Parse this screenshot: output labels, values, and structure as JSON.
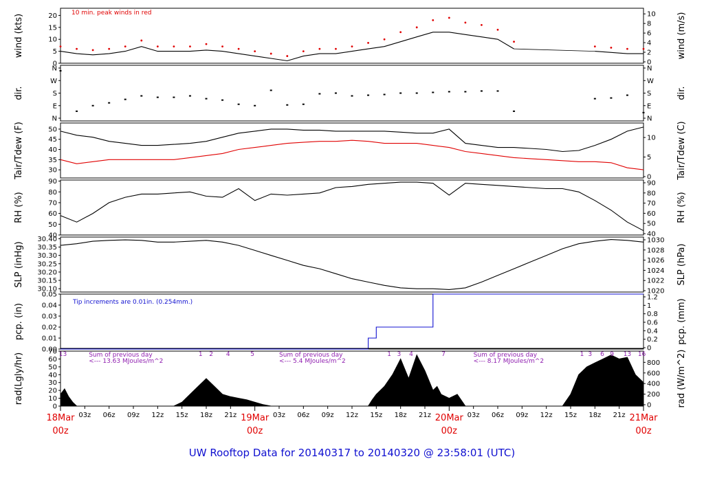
{
  "title": "UW Rooftop Data for 20140317  to  20140320 @ 23:58:01  (UTC)",
  "chart_data": [
    {
      "type": "line",
      "name": "wind",
      "ylabel": "wind (kts)",
      "ylabel_right": "wind (m/s)",
      "ylim": [
        0,
        23
      ],
      "yticks": [
        0,
        5,
        10,
        15,
        20
      ],
      "yticks_right": [
        "0",
        "2",
        "4",
        "6",
        "8",
        "10"
      ],
      "annotation": "10 min. peak winds in red",
      "x_hours": [
        0,
        2,
        4,
        6,
        8,
        10,
        12,
        14,
        16,
        18,
        20,
        22,
        24,
        26,
        28,
        30,
        32,
        34,
        36,
        38,
        40,
        42,
        44,
        46,
        48,
        50,
        52,
        54,
        56,
        58,
        60,
        62,
        64,
        66,
        68,
        70,
        72
      ],
      "series": [
        {
          "values": [
            5,
            4,
            3.5,
            4,
            5,
            7,
            5,
            5,
            5,
            5.5,
            5,
            4,
            3,
            2,
            1,
            3,
            4,
            4,
            5,
            6,
            7,
            9,
            11,
            13,
            13,
            12,
            11,
            10,
            6,
            null,
            null,
            null,
            null,
            5,
            4.5,
            4,
            4
          ]
        },
        {
          "values": [
            7,
            6,
            5.5,
            6,
            7,
            9.5,
            7,
            7,
            7,
            8,
            7,
            6,
            5,
            4,
            3,
            5,
            6,
            6,
            7,
            8.5,
            10,
            13,
            15,
            18,
            19,
            17,
            16,
            14,
            9,
            null,
            null,
            null,
            null,
            7,
            6.5,
            6,
            6
          ]
        }
      ]
    },
    {
      "type": "scatter",
      "name": "dir",
      "ylabel": "dir.",
      "ylabel_right": "dir.",
      "yticks": [
        "N",
        "E",
        "S",
        "W",
        "N"
      ],
      "x_hours": [
        0,
        2,
        4,
        6,
        8,
        10,
        12,
        14,
        16,
        18,
        20,
        22,
        24,
        26,
        28,
        30,
        32,
        34,
        36,
        38,
        40,
        42,
        44,
        46,
        48,
        50,
        52,
        54,
        56,
        58,
        60,
        62,
        64,
        66,
        68,
        70,
        72
      ],
      "values": [
        340,
        50,
        90,
        110,
        135,
        160,
        150,
        150,
        160,
        140,
        130,
        100,
        90,
        200,
        95,
        100,
        175,
        180,
        160,
        165,
        170,
        180,
        180,
        185,
        190,
        190,
        195,
        195,
        50,
        null,
        null,
        null,
        null,
        140,
        145,
        165,
        40
      ]
    },
    {
      "type": "line",
      "name": "temp",
      "ylabel": "Tair/Tdew (F)",
      "ylabel_right": "Tair/Tdew (C)",
      "ylim": [
        26,
        53
      ],
      "yticks": [
        30,
        35,
        40,
        45,
        50
      ],
      "yticks_right": [
        "0",
        "5",
        "10"
      ],
      "x_hours": [
        0,
        2,
        4,
        6,
        8,
        10,
        12,
        14,
        16,
        18,
        20,
        22,
        24,
        26,
        28,
        30,
        32,
        34,
        36,
        38,
        40,
        42,
        44,
        46,
        48,
        50,
        52,
        54,
        56,
        58,
        60,
        62,
        64,
        66,
        68,
        70,
        72
      ],
      "series": [
        {
          "name": "Tair",
          "values": [
            49,
            47,
            46,
            44,
            43,
            42,
            42,
            42.5,
            43,
            44,
            46,
            48,
            49,
            50,
            50,
            49.5,
            49.5,
            49,
            49,
            49,
            49,
            48.5,
            48,
            48,
            50,
            43,
            42,
            41,
            41,
            40.5,
            40,
            39,
            39.5,
            42,
            45,
            49,
            51
          ]
        },
        {
          "name": "Tdew",
          "values": [
            35,
            33,
            34,
            35,
            35,
            35,
            35,
            35,
            36,
            37,
            38,
            40,
            41,
            42,
            43,
            43.5,
            44,
            44,
            44.5,
            44,
            43,
            43,
            43,
            42,
            41,
            39,
            38,
            37,
            36,
            35.5,
            35,
            34.5,
            34,
            34,
            33.5,
            31,
            30
          ]
        }
      ]
    },
    {
      "type": "line",
      "name": "rh",
      "ylabel": "RH (%)",
      "ylabel_right": "RH (%)",
      "ylim": [
        40,
        91
      ],
      "yticks": [
        40,
        50,
        60,
        70,
        80,
        90
      ],
      "yticks_right": [
        "40",
        "50",
        "60",
        "70",
        "80",
        "90"
      ],
      "x_hours": [
        0,
        2,
        4,
        6,
        8,
        10,
        12,
        14,
        16,
        18,
        20,
        22,
        24,
        26,
        28,
        30,
        32,
        34,
        36,
        38,
        40,
        42,
        44,
        46,
        48,
        50,
        52,
        54,
        56,
        58,
        60,
        62,
        64,
        66,
        68,
        70,
        72
      ],
      "series": [
        {
          "values": [
            58,
            52,
            60,
            70,
            75,
            78,
            78,
            79,
            80,
            76,
            75,
            83,
            72,
            78,
            77,
            78,
            79,
            84,
            85,
            87,
            88,
            89,
            89,
            88,
            77,
            88,
            87,
            86,
            85,
            84,
            83,
            83,
            80,
            72,
            63,
            52,
            44
          ]
        }
      ]
    },
    {
      "type": "line",
      "name": "slp",
      "ylabel": "SLP (inHg)",
      "ylabel_right": "SLP (hPa)",
      "ylim": [
        30.08,
        30.41
      ],
      "yticks": [
        "30.10",
        "30.15",
        "30.20",
        "30.25",
        "30.30",
        "30.35",
        "30.40"
      ],
      "yticks_right": [
        "1020",
        "1022",
        "1024",
        "1026",
        "1028",
        "1030"
      ],
      "x_hours": [
        0,
        2,
        4,
        6,
        8,
        10,
        12,
        14,
        16,
        18,
        20,
        22,
        24,
        26,
        28,
        30,
        32,
        34,
        36,
        38,
        40,
        42,
        44,
        46,
        48,
        50,
        52,
        54,
        56,
        58,
        60,
        62,
        64,
        66,
        68,
        70,
        72
      ],
      "series": [
        {
          "values": [
            30.36,
            30.37,
            30.385,
            30.39,
            30.393,
            30.39,
            30.38,
            30.38,
            30.385,
            30.39,
            30.38,
            30.36,
            30.33,
            30.3,
            30.27,
            30.24,
            30.22,
            30.19,
            30.16,
            30.14,
            30.12,
            30.105,
            30.1,
            30.1,
            30.095,
            30.105,
            30.14,
            30.18,
            30.22,
            30.26,
            30.3,
            30.34,
            30.37,
            30.385,
            30.395,
            30.39,
            30.38
          ]
        }
      ]
    },
    {
      "type": "line",
      "name": "pcp",
      "ylabel": "pcp. (in)",
      "ylabel_right": "pcp. (mm)",
      "ylim": [
        0,
        0.05
      ],
      "yticks": [
        "0.00",
        "0.01",
        "0.02",
        "0.03",
        "0.04",
        "0.05"
      ],
      "yticks_right": [
        "0",
        "0.2",
        "0.4",
        "0.6",
        "0.8",
        "1",
        "1.2"
      ],
      "annotation": "Tip increments are 0.01in. (0.254mm.)",
      "steps": [
        [
          0,
          0
        ],
        [
          38,
          0
        ],
        [
          38,
          0.01
        ],
        [
          39,
          0.01
        ],
        [
          39,
          0.02
        ],
        [
          46,
          0.02
        ],
        [
          46,
          0.05
        ],
        [
          72,
          0.05
        ]
      ]
    },
    {
      "type": "area",
      "name": "rad",
      "ylabel": "rad(Lgly/hr)",
      "ylabel_right": "rad (W/m^2)",
      "ylim": [
        0,
        70
      ],
      "yticks": [
        0,
        10,
        20,
        30,
        40,
        50,
        60,
        70
      ],
      "yticks_right": [
        "0",
        "200",
        "400",
        "600",
        "800"
      ],
      "x_hours": [
        0,
        0.5,
        1,
        1.5,
        2,
        14,
        15,
        16,
        17,
        18,
        19,
        20,
        21,
        22,
        23,
        24,
        25,
        26,
        38,
        38.5,
        39,
        40,
        41,
        42,
        43,
        44,
        45,
        46,
        46.5,
        47,
        48,
        49,
        50,
        62,
        63,
        64,
        65,
        66,
        67,
        68,
        69,
        70,
        71,
        72
      ],
      "values": [
        15,
        22,
        12,
        5,
        0,
        0,
        5,
        15,
        25,
        35,
        25,
        15,
        12,
        10,
        8,
        5,
        2,
        0,
        0,
        8,
        15,
        25,
        40,
        60,
        35,
        65,
        45,
        20,
        25,
        15,
        10,
        15,
        0,
        0,
        15,
        40,
        50,
        55,
        60,
        65,
        60,
        62,
        40,
        30
      ],
      "annotations": [
        {
          "text": "Sum of previous day",
          "x_hours": 3.5,
          "line": 1
        },
        {
          "text": "<--- 13.63 MJoules/m^2",
          "x_hours": 3.5,
          "line": 2
        },
        {
          "text": "Sum of previous day",
          "x_hours": 27,
          "line": 1
        },
        {
          "text": "<--- 5.4 MJoules/m^2",
          "x_hours": 27,
          "line": 2
        },
        {
          "text": "Sum of previous day",
          "x_hours": 51,
          "line": 1
        },
        {
          "text": "<--- 8.17 MJoules/m^2",
          "x_hours": 51,
          "line": 2
        }
      ],
      "hour_markers": [
        {
          "text": "13",
          "x_hours": 0.3
        },
        {
          "text": "1",
          "x_hours": 17.3
        },
        {
          "text": "2",
          "x_hours": 18.6
        },
        {
          "text": "4",
          "x_hours": 20.7
        },
        {
          "text": "5",
          "x_hours": 23.7
        },
        {
          "text": "1",
          "x_hours": 40.6
        },
        {
          "text": "3",
          "x_hours": 41.8
        },
        {
          "text": "4",
          "x_hours": 43.3
        },
        {
          "text": "7",
          "x_hours": 47.3
        },
        {
          "text": "1",
          "x_hours": 64.4
        },
        {
          "text": "3",
          "x_hours": 65.4
        },
        {
          "text": "6",
          "x_hours": 66.9
        },
        {
          "text": "9",
          "x_hours": 68.1
        },
        {
          "text": "13",
          "x_hours": 70
        },
        {
          "text": "16",
          "x_hours": 71.8
        }
      ]
    }
  ],
  "xaxis": {
    "minor_ticks": [
      "03z",
      "06z",
      "09z",
      "12z",
      "15z",
      "18z",
      "21z",
      "03z",
      "06z",
      "09z",
      "12z",
      "15z",
      "18z",
      "21z",
      "03z",
      "06z",
      "09z",
      "12z",
      "15z",
      "18z",
      "21z"
    ],
    "minor_hours": [
      3,
      6,
      9,
      12,
      15,
      18,
      21,
      27,
      30,
      33,
      36,
      39,
      42,
      45,
      51,
      54,
      57,
      60,
      63,
      66,
      69
    ],
    "days": [
      {
        "date": "18Mar",
        "hour": "00z",
        "x_hours": 0
      },
      {
        "date": "19Mar",
        "hour": "00z",
        "x_hours": 24
      },
      {
        "date": "20Mar",
        "hour": "00z",
        "x_hours": 48
      },
      {
        "date": "21Mar",
        "hour": "00z",
        "x_hours": 72
      }
    ],
    "range_hours": [
      0,
      72
    ]
  }
}
